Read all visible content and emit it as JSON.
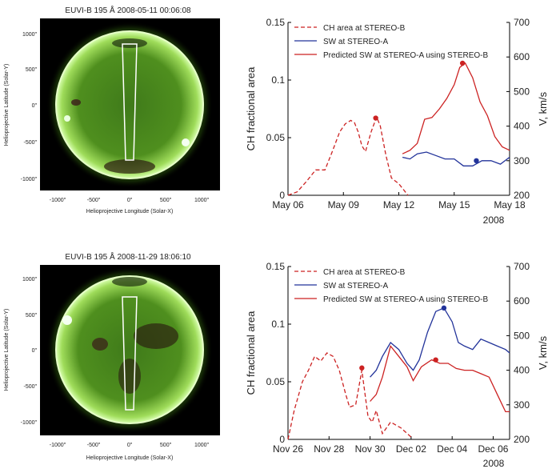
{
  "panels": [
    {
      "image": {
        "title": "EUVI-B 195 Å 2008-05-11 00:06:08",
        "xlabel": "Helioprojective Longitude (Solar-X)",
        "ylabel": "Helioprojective Latitude (Solar-Y)",
        "xticks": [
          "-1000″",
          "-500″",
          "0″",
          "500″",
          "1000″"
        ],
        "yticks": [
          "1000″",
          "500″",
          "0″",
          "-500″",
          "-1000″"
        ]
      },
      "year_label": "2008"
    },
    {
      "image": {
        "title": "EUVI-B 195 Å 2008-11-29 18:06:10",
        "xlabel": "Helioprojective Longitude (Solar-X)",
        "ylabel": "Helioprojective Latitude (Solar-Y)",
        "xticks": [
          "-1000″",
          "-500″",
          "0″",
          "500″",
          "1000″"
        ],
        "yticks": [
          "1000″",
          "500″",
          "0″",
          "-500″",
          "-1000″"
        ]
      },
      "year_label": "2008"
    }
  ],
  "chart_data": [
    {
      "type": "line",
      "ylabel_left": "CH fractional area",
      "ylabel_right": "V, km/s",
      "xticks": [
        {
          "day": 0,
          "label": "May 06"
        },
        {
          "day": 3,
          "label": "May 09"
        },
        {
          "day": 6,
          "label": "May 12"
        },
        {
          "day": 9,
          "label": "May 15"
        },
        {
          "day": 12,
          "label": "May 18"
        }
      ],
      "xlim": [
        0,
        12
      ],
      "ylim_left": [
        0,
        0.15
      ],
      "ylim_right": [
        200,
        700
      ],
      "yticks_left": [
        {
          "v": 0,
          "label": "0"
        },
        {
          "v": 0.05,
          "label": "0.05"
        },
        {
          "v": 0.1,
          "label": "0.1"
        },
        {
          "v": 0.15,
          "label": "0.15"
        }
      ],
      "yticks_right": [
        200,
        300,
        400,
        500,
        600,
        700
      ],
      "legend": [
        "CH area at STEREO-B",
        "SW at STEREO-A",
        "Predicted SW at STEREO-A using STEREO-B"
      ],
      "series": [
        {
          "name": "CH area at STEREO-B",
          "axis": "left",
          "style": "dashed",
          "color": "#cc2222",
          "x": [
            0,
            0.5,
            1,
            1.5,
            2,
            2.4,
            2.8,
            3.1,
            3.4,
            3.6,
            3.8,
            4.0,
            4.2,
            4.5,
            4.8,
            5.0,
            5.3,
            5.6,
            6.0,
            6.5
          ],
          "y": [
            0.0,
            0.003,
            0.012,
            0.022,
            0.022,
            0.038,
            0.055,
            0.062,
            0.065,
            0.063,
            0.055,
            0.043,
            0.038,
            0.055,
            0.068,
            0.06,
            0.035,
            0.015,
            0.01,
            0.0
          ],
          "marker": {
            "x": 4.75,
            "y": 0.067
          }
        },
        {
          "name": "SW at STEREO-A",
          "axis": "right",
          "style": "solid",
          "color": "#22339a",
          "x": [
            6.2,
            6.6,
            7.0,
            7.5,
            8.0,
            8.5,
            9.0,
            9.5,
            10.0,
            10.5,
            11.0,
            11.5,
            12.0
          ],
          "y": [
            310,
            305,
            320,
            325,
            315,
            305,
            305,
            285,
            285,
            300,
            300,
            290,
            310
          ],
          "marker": {
            "x": 10.2,
            "y": 300
          }
        },
        {
          "name": "Predicted SW at STEREO-A using STEREO-B",
          "axis": "right",
          "style": "solid",
          "color": "#cc2222",
          "x": [
            6.2,
            6.6,
            7.0,
            7.4,
            7.8,
            8.2,
            8.6,
            9.0,
            9.3,
            9.6,
            10.0,
            10.4,
            10.8,
            11.2,
            11.6,
            12.0
          ],
          "y": [
            320,
            330,
            350,
            420,
            425,
            450,
            480,
            520,
            570,
            582,
            540,
            470,
            430,
            370,
            340,
            330
          ],
          "marker": {
            "x": 9.45,
            "y": 582
          }
        }
      ]
    },
    {
      "type": "line",
      "ylabel_left": "CH fractional area",
      "ylabel_right": "V, km/s",
      "xticks": [
        {
          "day": 0,
          "label": "Nov 26"
        },
        {
          "day": 2,
          "label": "Nov 28"
        },
        {
          "day": 4,
          "label": "Nov 30"
        },
        {
          "day": 6,
          "label": "Dec 02"
        },
        {
          "day": 8,
          "label": "Dec 04"
        },
        {
          "day": 10,
          "label": "Dec 06"
        }
      ],
      "xlim": [
        0,
        10.8
      ],
      "ylim_left": [
        0,
        0.15
      ],
      "ylim_right": [
        200,
        700
      ],
      "yticks_left": [
        {
          "v": 0,
          "label": "0"
        },
        {
          "v": 0.05,
          "label": "0.05"
        },
        {
          "v": 0.1,
          "label": "0.1"
        },
        {
          "v": 0.15,
          "label": "0.15"
        }
      ],
      "yticks_right": [
        200,
        300,
        400,
        500,
        600,
        700
      ],
      "legend": [
        "CH area at STEREO-B",
        "SW at STEREO-A",
        "Predicted SW at STEREO-A using STEREO-B"
      ],
      "series": [
        {
          "name": "CH area at STEREO-B",
          "axis": "left",
          "style": "dashed",
          "color": "#cc2222",
          "x": [
            0,
            0.3,
            0.7,
            1.0,
            1.3,
            1.6,
            1.9,
            2.2,
            2.5,
            2.8,
            3.0,
            3.3,
            3.6,
            3.9,
            4.1,
            4.3,
            4.6,
            5.0,
            5.5,
            6.0
          ],
          "y": [
            0.0,
            0.025,
            0.05,
            0.06,
            0.072,
            0.068,
            0.075,
            0.072,
            0.06,
            0.04,
            0.028,
            0.03,
            0.06,
            0.02,
            0.015,
            0.025,
            0.005,
            0.015,
            0.01,
            0.002
          ],
          "marker": {
            "x": 3.6,
            "y": 0.062
          }
        },
        {
          "name": "SW at STEREO-A",
          "axis": "right",
          "style": "solid",
          "color": "#22339a",
          "x": [
            4.0,
            4.3,
            4.6,
            5.0,
            5.4,
            5.8,
            6.1,
            6.4,
            6.8,
            7.2,
            7.6,
            8.0,
            8.3,
            8.6,
            9.0,
            9.4,
            9.8,
            10.2,
            10.6,
            10.8
          ],
          "y": [
            380,
            400,
            440,
            480,
            460,
            420,
            400,
            430,
            510,
            570,
            580,
            540,
            480,
            470,
            460,
            490,
            480,
            470,
            460,
            450
          ],
          "marker": {
            "x": 7.6,
            "y": 580
          }
        },
        {
          "name": "Predicted SW at STEREO-A using STEREO-B",
          "axis": "right",
          "style": "solid",
          "color": "#cc2222",
          "x": [
            4.0,
            4.3,
            4.6,
            5.0,
            5.4,
            5.8,
            6.1,
            6.5,
            7.0,
            7.4,
            7.8,
            8.2,
            8.6,
            9.0,
            9.4,
            9.8,
            10.2,
            10.6,
            10.8
          ],
          "y": [
            310,
            330,
            380,
            470,
            440,
            410,
            370,
            410,
            430,
            420,
            420,
            405,
            400,
            400,
            390,
            380,
            330,
            280,
            280
          ],
          "marker": {
            "x": 7.2,
            "y": 430
          }
        }
      ]
    }
  ]
}
